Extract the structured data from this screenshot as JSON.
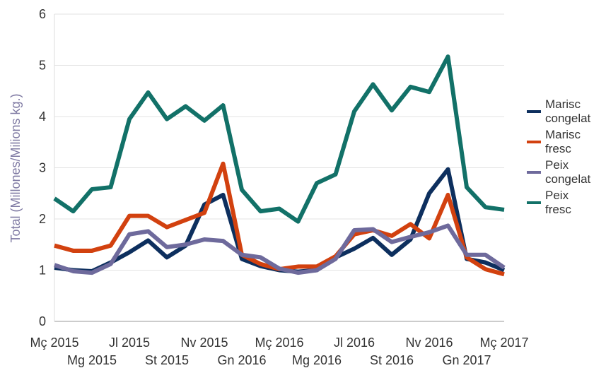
{
  "chart_data": {
    "type": "line",
    "y_label": "Total (Millones/Milions kg.)",
    "categories": [
      "Mç 2015",
      null,
      "Mg 2015",
      null,
      "Jl 2015",
      null,
      "St 2015",
      null,
      "Nv 2015",
      null,
      "Gn 2016",
      null,
      "Mç 2016",
      null,
      "Mg 2016",
      null,
      "Jl 2016",
      null,
      "St 2016",
      null,
      "Nv 2016",
      null,
      "Gn 2017",
      null,
      "Mç 2017"
    ],
    "series": [
      {
        "name": "Marisc congelat",
        "color": "#0d2f5e",
        "values": [
          1.05,
          1.0,
          0.98,
          1.15,
          1.35,
          1.58,
          1.25,
          1.48,
          2.28,
          2.47,
          1.22,
          1.08,
          1.0,
          0.97,
          1.0,
          1.25,
          1.42,
          1.63,
          1.3,
          1.6,
          2.5,
          2.97,
          1.22,
          1.15,
          1.0
        ]
      },
      {
        "name": "Marisc fresc",
        "color": "#d2410f",
        "values": [
          1.48,
          1.38,
          1.38,
          1.48,
          2.06,
          2.06,
          1.84,
          1.98,
          2.12,
          3.08,
          1.3,
          1.12,
          1.02,
          1.07,
          1.07,
          1.27,
          1.7,
          1.78,
          1.67,
          1.9,
          1.62,
          2.47,
          1.25,
          1.02,
          0.92
        ]
      },
      {
        "name": "Peix congelat",
        "color": "#6e6a9c",
        "values": [
          1.1,
          0.98,
          0.95,
          1.12,
          1.7,
          1.76,
          1.45,
          1.5,
          1.6,
          1.57,
          1.3,
          1.25,
          1.03,
          0.95,
          1.0,
          1.22,
          1.78,
          1.8,
          1.55,
          1.65,
          1.74,
          1.87,
          1.3,
          1.3,
          1.05
        ]
      },
      {
        "name": "Peix fresc",
        "color": "#127168",
        "values": [
          2.4,
          2.15,
          2.58,
          2.62,
          3.95,
          4.47,
          3.95,
          4.2,
          3.92,
          4.22,
          2.57,
          2.15,
          2.2,
          1.95,
          2.7,
          2.87,
          4.1,
          4.63,
          4.12,
          4.58,
          4.48,
          5.17,
          2.62,
          2.23,
          2.18
        ]
      }
    ],
    "ylim": [
      0,
      6
    ],
    "yticks": [
      0,
      1,
      2,
      3,
      4,
      5,
      6
    ],
    "grid": true,
    "legend": "right"
  }
}
